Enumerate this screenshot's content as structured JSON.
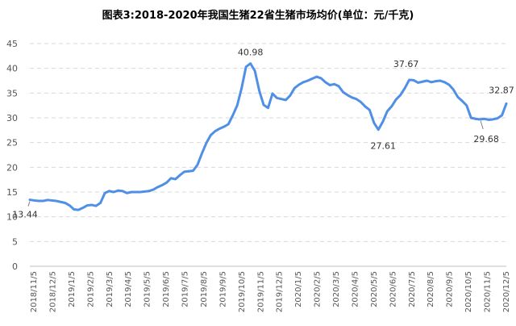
{
  "chart_data": {
    "type": "line",
    "title": "图表3:2018-2020年我国生猪22省生猪市场均价(单位：元/千克)",
    "xlabel": "",
    "ylabel": "",
    "ylim": [
      0,
      45
    ],
    "yticks": [
      0,
      5,
      10,
      15,
      20,
      25,
      30,
      35,
      40,
      45
    ],
    "grid": true,
    "legend": "none",
    "line_color": "#4f8fe6",
    "xticks": [
      "2018/11/5",
      "2018/12/5",
      "2019/1/5",
      "2019/2/5",
      "2019/3/5",
      "2019/4/5",
      "2019/5/5",
      "2019/6/5",
      "2019/7/5",
      "2019/8/5",
      "2019/9/5",
      "2019/10/5",
      "2019/11/5",
      "2019/12/5",
      "2020/1/5",
      "2020/2/5",
      "2020/3/5",
      "2020/4/5",
      "2020/5/5",
      "2020/6/5",
      "2020/7/5",
      "2020/8/5",
      "2020/9/5",
      "2020/10/5",
      "2020/11/5",
      "2020/12/5"
    ],
    "series": [
      {
        "name": "",
        "values": [
          13.44,
          13.3,
          13.2,
          13.2,
          13.4,
          13.3,
          13.2,
          13.0,
          12.8,
          12.3,
          11.5,
          11.4,
          11.8,
          12.3,
          12.4,
          12.2,
          12.8,
          14.8,
          15.2,
          15.0,
          15.3,
          15.2,
          14.8,
          15.0,
          15.0,
          15.0,
          15.1,
          15.2,
          15.5,
          16.0,
          16.4,
          16.9,
          17.8,
          17.6,
          18.4,
          19.1,
          19.2,
          19.3,
          20.5,
          22.8,
          24.9,
          26.5,
          27.3,
          27.8,
          28.2,
          28.7,
          30.5,
          32.5,
          36.0,
          40.3,
          40.98,
          39.5,
          35.5,
          32.6,
          32.0,
          34.9,
          34.0,
          33.8,
          33.6,
          34.5,
          36.0,
          36.7,
          37.2,
          37.5,
          37.9,
          38.3,
          38.0,
          37.2,
          36.6,
          36.8,
          36.4,
          35.2,
          34.6,
          34.1,
          33.8,
          33.2,
          32.3,
          31.6,
          29.0,
          27.61,
          29.2,
          31.3,
          32.3,
          33.7,
          34.6,
          36.0,
          37.67,
          37.6,
          37.1,
          37.3,
          37.5,
          37.2,
          37.4,
          37.5,
          37.2,
          36.7,
          35.7,
          34.2,
          33.4,
          32.5,
          30.0,
          29.8,
          29.68,
          29.8,
          29.6,
          29.7,
          29.9,
          30.5,
          32.87
        ]
      }
    ],
    "annotations": [
      {
        "label": "13.44",
        "value": 13.44
      },
      {
        "label": "40.98",
        "value": 40.98
      },
      {
        "label": "27.61",
        "value": 27.61
      },
      {
        "label": "37.67",
        "value": 37.67
      },
      {
        "label": "29.68",
        "value": 29.68
      },
      {
        "label": "32.87",
        "value": 32.87
      }
    ]
  }
}
